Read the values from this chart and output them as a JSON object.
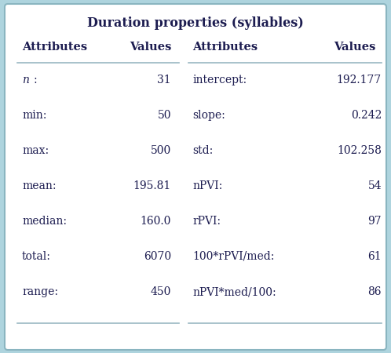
{
  "title": "Duration properties (syllables)",
  "background_color": "#aed4de",
  "table_bg": "#ffffff",
  "text_color": "#1c1c50",
  "line_color": "#9ab8c2",
  "left_rows": [
    [
      "n:",
      "31"
    ],
    [
      "min:",
      "50"
    ],
    [
      "max:",
      "500"
    ],
    [
      "mean:",
      "195.81"
    ],
    [
      "median:",
      "160.0"
    ],
    [
      "total:",
      "6070"
    ],
    [
      "range:",
      "450"
    ]
  ],
  "right_rows": [
    [
      "intercept:",
      "192.177"
    ],
    [
      "slope:",
      "0.242"
    ],
    [
      "std:",
      "102.258"
    ],
    [
      "nPVI:",
      "54"
    ],
    [
      "rPVI:",
      "97"
    ],
    [
      "100*rPVI/med:",
      "61"
    ],
    [
      "nPVI*med/100:",
      "86"
    ]
  ],
  "title_fontsize": 11.5,
  "header_fontsize": 10.5,
  "data_fontsize": 10.0,
  "fig_width": 4.98,
  "fig_height": 4.5,
  "dpi": 100
}
